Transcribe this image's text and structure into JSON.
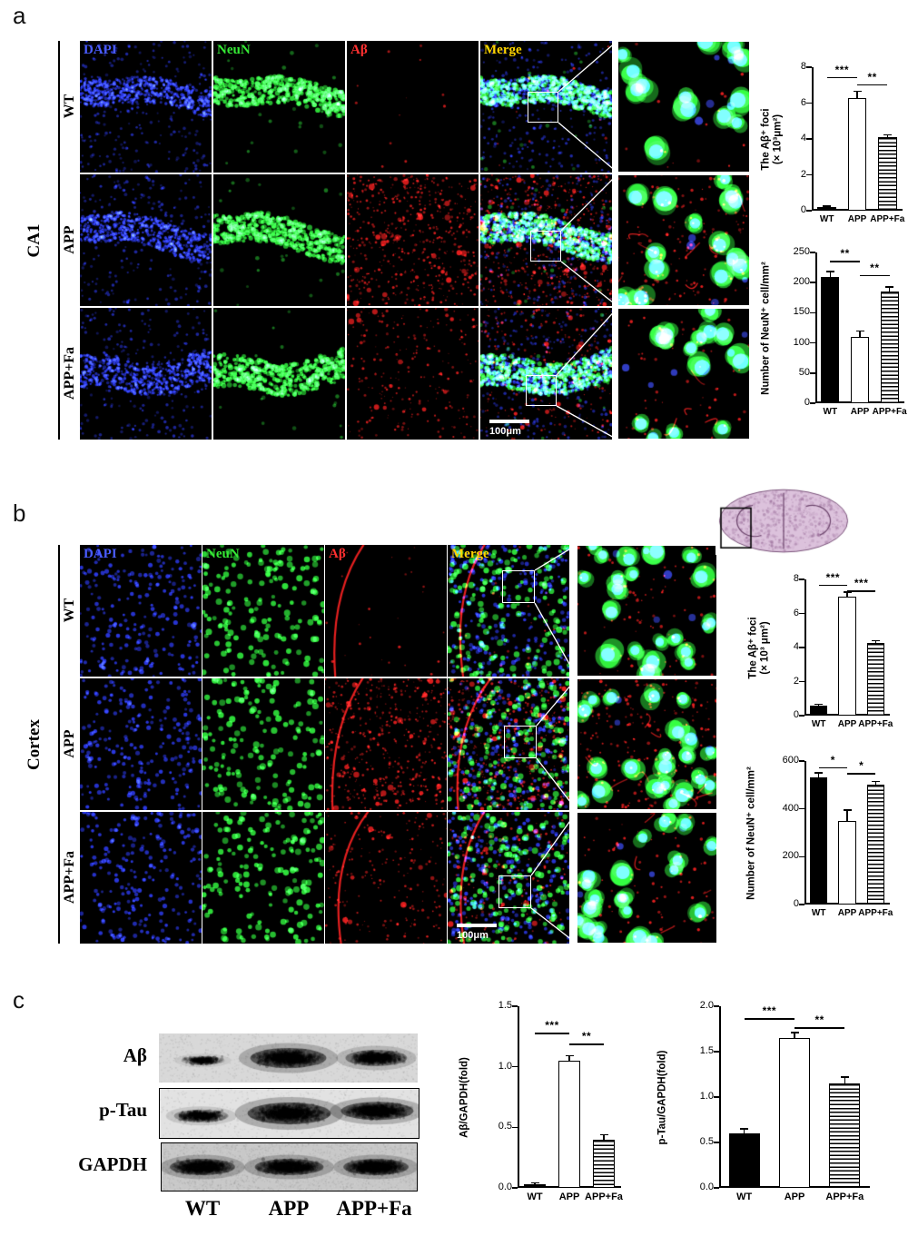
{
  "figure": {
    "panel_a": {
      "label": "a",
      "region_label": "CA1",
      "row_labels": [
        "WT",
        "APP",
        "APP+Fa"
      ],
      "channel_labels": [
        "DAPI",
        "NeuN",
        "Aβ",
        "Merge"
      ],
      "channel_label_colors": [
        "#4a5cff",
        "#35e835",
        "#ff3030",
        "#ffd400"
      ],
      "scale_bar_label": "100μm"
    },
    "panel_b": {
      "label": "b",
      "region_label": "Cortex",
      "row_labels": [
        "WT",
        "APP",
        "APP+Fa"
      ],
      "channel_labels": [
        "DAPI",
        "NeuN",
        "Aβ",
        "Merge"
      ],
      "channel_label_colors": [
        "#4a5cff",
        "#35e835",
        "#ff3030",
        "#ffd400"
      ],
      "scale_bar_label": "100μm"
    },
    "panel_c": {
      "label": "c",
      "blot_labels": [
        "Aβ",
        "p-Tau",
        "GAPDH"
      ],
      "lane_labels": [
        "WT",
        "APP",
        "APP+Fa"
      ]
    }
  },
  "chart_data": [
    {
      "id": "ca1-abeta-foci",
      "type": "bar",
      "panel": "a",
      "region": "CA1",
      "ylabel": "The Aβ⁺ foci\n(× 10³μm²)",
      "categories": [
        "WT",
        "APP",
        "APP+Fa"
      ],
      "values": [
        0.2,
        6.3,
        4.1
      ],
      "errors": [
        0.05,
        0.35,
        0.12
      ],
      "ylim": [
        0,
        8
      ],
      "yticks": [
        0,
        2,
        4,
        6,
        8
      ],
      "ytick_labels": [
        "0",
        "2",
        "4",
        "6",
        "8"
      ],
      "bar_styles": [
        "solid-black",
        "open-white",
        "striped-horizontal"
      ],
      "significance": [
        {
          "from": 0,
          "to": 1,
          "label": "***",
          "y": 7.45
        },
        {
          "from": 1,
          "to": 2,
          "label": "**",
          "y": 7.05
        }
      ]
    },
    {
      "id": "ca1-neun-count",
      "type": "bar",
      "panel": "a",
      "region": "CA1",
      "ylabel": "Number of NeuN⁺ cell/mm²",
      "categories": [
        "WT",
        "APP",
        "APP+Fa"
      ],
      "values": [
        210,
        110,
        185
      ],
      "errors": [
        8,
        10,
        8
      ],
      "ylim": [
        0,
        250
      ],
      "yticks": [
        0,
        50,
        100,
        150,
        200,
        250
      ],
      "ytick_labels": [
        "0",
        "50",
        "100",
        "150",
        "200",
        "250"
      ],
      "bar_styles": [
        "solid-black",
        "open-white",
        "striped-horizontal"
      ],
      "significance": [
        {
          "from": 0,
          "to": 1,
          "label": "**",
          "y": 236
        },
        {
          "from": 1,
          "to": 2,
          "label": "**",
          "y": 213
        }
      ]
    },
    {
      "id": "cortex-abeta-foci",
      "type": "bar",
      "panel": "b",
      "region": "Cortex",
      "ylabel": "The Aβ⁺ foci\n(× 10³ μm²)",
      "categories": [
        "WT",
        "APP",
        "APP+Fa"
      ],
      "values": [
        0.6,
        7.0,
        4.25
      ],
      "errors": [
        0.08,
        0.25,
        0.15
      ],
      "ylim": [
        0,
        8
      ],
      "yticks": [
        0,
        2,
        4,
        6,
        8
      ],
      "ytick_labels": [
        "0",
        "2",
        "4",
        "6",
        "8"
      ],
      "bar_styles": [
        "solid-black",
        "open-white",
        "striped-horizontal"
      ],
      "significance": [
        {
          "from": 0,
          "to": 1,
          "label": "***",
          "y": 7.7
        },
        {
          "from": 1,
          "to": 2,
          "label": "***",
          "y": 7.35
        }
      ]
    },
    {
      "id": "cortex-neun-count",
      "type": "bar",
      "panel": "b",
      "region": "Cortex",
      "ylabel": "Number of NeuN⁺ cell/mm²",
      "categories": [
        "WT",
        "APP",
        "APP+Fa"
      ],
      "values": [
        530,
        350,
        500
      ],
      "errors": [
        20,
        45,
        15
      ],
      "ylim": [
        0,
        600
      ],
      "yticks": [
        0,
        200,
        400,
        600
      ],
      "ytick_labels": [
        "0",
        "200",
        "400",
        "600"
      ],
      "bar_styles": [
        "solid-black",
        "open-white",
        "striped-horizontal"
      ],
      "significance": [
        {
          "from": 0,
          "to": 1,
          "label": "*",
          "y": 575
        },
        {
          "from": 1,
          "to": 2,
          "label": "*",
          "y": 550
        }
      ]
    },
    {
      "id": "abeta-gapdh-fold",
      "type": "bar",
      "panel": "c",
      "ylabel": "Aβ/GAPDH(fold)",
      "categories": [
        "WT",
        "APP",
        "APP+Fa"
      ],
      "values": [
        0.03,
        1.05,
        0.4
      ],
      "errors": [
        0.01,
        0.04,
        0.04
      ],
      "ylim": [
        0,
        1.5
      ],
      "yticks": [
        0,
        0.5,
        1.0,
        1.5
      ],
      "ytick_labels": [
        "0.0",
        "0.5",
        "1.0",
        "1.5"
      ],
      "bar_styles": [
        "solid-black",
        "open-white",
        "striped-horizontal"
      ],
      "significance": [
        {
          "from": 0,
          "to": 1,
          "label": "***",
          "y": 1.28
        },
        {
          "from": 1,
          "to": 2,
          "label": "**",
          "y": 1.19
        }
      ]
    },
    {
      "id": "ptau-gapdh-fold",
      "type": "bar",
      "panel": "c",
      "ylabel": "p-Tau/GAPDH(fold)",
      "categories": [
        "WT",
        "APP",
        "APP+Fa"
      ],
      "values": [
        0.6,
        1.65,
        1.15
      ],
      "errors": [
        0.05,
        0.06,
        0.07
      ],
      "ylim": [
        0,
        2.0
      ],
      "yticks": [
        0,
        0.5,
        1.0,
        1.5,
        2.0
      ],
      "ytick_labels": [
        "0.0",
        "0.5",
        "1.0",
        "1.5",
        "2.0"
      ],
      "bar_styles": [
        "solid-black",
        "open-white",
        "striped-horizontal"
      ],
      "significance": [
        {
          "from": 0,
          "to": 1,
          "label": "***",
          "y": 1.87
        },
        {
          "from": 1,
          "to": 2,
          "label": "**",
          "y": 1.77
        }
      ]
    }
  ]
}
